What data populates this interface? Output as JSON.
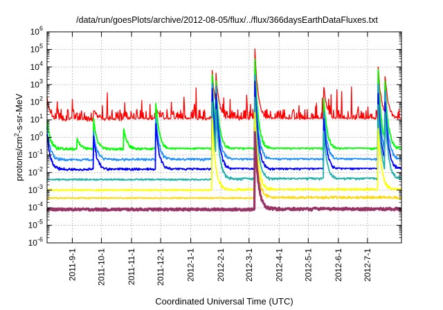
{
  "chart_data": {
    "type": "line",
    "title": "/data/run/goesPlots/archive/2012-08-05/flux/../flux/366daysEarthDataFluxes.txt",
    "xlabel": "Coordinated Universal Time (UTC)",
    "ylabel": {
      "pre": "protons/cm",
      "sup": "2",
      "post": "-s-sr-MeV"
    },
    "y_scale": "log",
    "ylim_exponents": [
      -6,
      6
    ],
    "y_ticks": [
      {
        "base": "10",
        "exp": "-6"
      },
      {
        "base": "10",
        "exp": "-5"
      },
      {
        "base": "10",
        "exp": "-4"
      },
      {
        "base": "10",
        "exp": "-3"
      },
      {
        "base": "10",
        "exp": "-2"
      },
      {
        "base": "10",
        "exp": "-1"
      },
      {
        "base": "10",
        "exp": "0"
      },
      {
        "base": "10",
        "exp": "1"
      },
      {
        "base": "10",
        "exp": "2"
      },
      {
        "base": "10",
        "exp": "3"
      },
      {
        "base": "10",
        "exp": "4"
      },
      {
        "base": "10",
        "exp": "5"
      },
      {
        "base": "10",
        "exp": "6"
      }
    ],
    "x_range": [
      "2011-08-06",
      "2012-08-05"
    ],
    "x_ticks": [
      "2011-9-1",
      "2011-10-1",
      "2011-11-1",
      "2011-12-1",
      "2012-1-1",
      "2012-2-1",
      "2012-3-1",
      "2012-4-1",
      "2012-5-1",
      "2012-6-1",
      "2012-7-1"
    ],
    "grid": true,
    "legend": "none",
    "series": [
      {
        "color": "#ff0000",
        "baseline_log": 1.0,
        "noise_log": 0.6,
        "peaks": [
          [
            "2011-08-06",
            2.2
          ],
          [
            "2011-09-23",
            1.6
          ],
          [
            "2011-10-24",
            1.3
          ],
          [
            "2011-11-26",
            1.7
          ],
          [
            "2012-01-23",
            3.9
          ],
          [
            "2012-01-27",
            3.6
          ],
          [
            "2012-03-07",
            5.0
          ],
          [
            "2012-05-17",
            2.9
          ],
          [
            "2012-07-12",
            4.0
          ],
          [
            "2012-07-19",
            3.5
          ]
        ]
      },
      {
        "color": "#00ff00",
        "baseline_log": -0.7,
        "noise_log": 0.05,
        "peaks": [
          [
            "2011-08-06",
            1.0
          ],
          [
            "2011-09-06",
            0.0
          ],
          [
            "2011-09-23",
            1.0
          ],
          [
            "2011-10-24",
            0.5
          ],
          [
            "2011-11-26",
            2.0
          ],
          [
            "2012-01-23",
            3.6
          ],
          [
            "2012-01-27",
            3.2
          ],
          [
            "2012-03-07",
            4.5
          ],
          [
            "2012-05-17",
            2.2
          ],
          [
            "2012-07-12",
            3.8
          ],
          [
            "2012-07-19",
            3.2
          ]
        ]
      },
      {
        "color": "#1e90ff",
        "baseline_log": -1.3,
        "noise_log": 0.04,
        "peaks": [
          [
            "2011-08-06",
            0.5
          ],
          [
            "2011-09-23",
            0.3
          ],
          [
            "2011-11-26",
            1.2
          ],
          [
            "2012-01-23",
            3.0
          ],
          [
            "2012-01-27",
            2.8
          ],
          [
            "2012-03-07",
            3.6
          ],
          [
            "2012-05-17",
            1.5
          ],
          [
            "2012-07-12",
            3.0
          ],
          [
            "2012-07-19",
            2.7
          ]
        ]
      },
      {
        "color": "#0000ff",
        "baseline_log": -1.85,
        "noise_log": 0.04,
        "peaks": [
          [
            "2011-08-06",
            0.2
          ],
          [
            "2011-09-23",
            0.0
          ],
          [
            "2011-11-26",
            0.8
          ],
          [
            "2012-01-23",
            2.8
          ],
          [
            "2012-01-27",
            2.4
          ],
          [
            "2012-03-07",
            3.1
          ],
          [
            "2012-05-17",
            1.0
          ],
          [
            "2012-07-12",
            2.4
          ],
          [
            "2012-07-19",
            2.0
          ]
        ]
      },
      {
        "color": "#20b2aa",
        "baseline_log": -2.4,
        "noise_log": 0.04,
        "peaks": [
          [
            "2012-01-23",
            2.0
          ],
          [
            "2012-01-27",
            1.6
          ],
          [
            "2012-03-07",
            2.3
          ],
          [
            "2012-05-17",
            0.3
          ],
          [
            "2012-07-12",
            1.8
          ],
          [
            "2012-07-19",
            1.5
          ]
        ]
      },
      {
        "color": "#ffff00",
        "baseline_log": -3.0,
        "noise_log": 0.04,
        "peaks": [
          [
            "2012-01-23",
            1.0
          ],
          [
            "2012-03-07",
            1.4
          ],
          [
            "2012-07-12",
            0.5
          ]
        ]
      },
      {
        "color": "#ffd700",
        "baseline_log": -3.45,
        "noise_log": 0.03,
        "peaks": [
          [
            "2012-03-07",
            0.6
          ]
        ]
      },
      {
        "color": "#993366",
        "baseline_log": -4.1,
        "noise_log": 0.06,
        "peaks": [
          [
            "2012-03-07",
            0.3
          ]
        ]
      }
    ]
  }
}
